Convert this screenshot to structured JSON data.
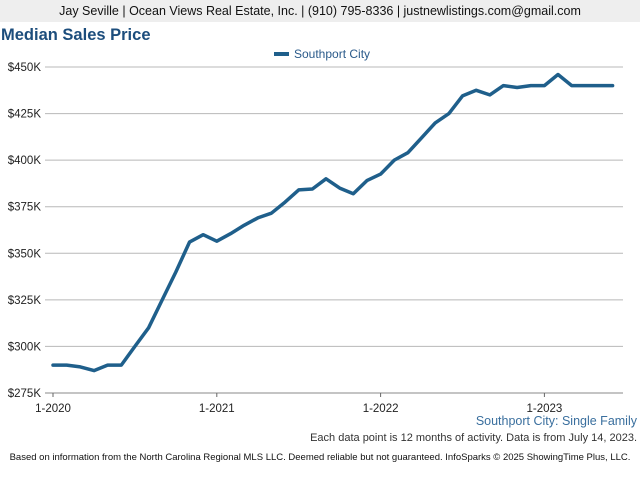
{
  "header": {
    "contact_line": "Jay Seville | Ocean Views Real Estate, Inc. | (910) 795-8336 | justnewlistings.com@gmail.com"
  },
  "chart_data": {
    "type": "line",
    "title": "Median Sales Price",
    "xlabel": "",
    "ylabel": "",
    "x_ticks": [
      "1-2020",
      "1-2021",
      "1-2022",
      "1-2023"
    ],
    "y_ticks": [
      "$275K",
      "$300K",
      "$325K",
      "$350K",
      "$375K",
      "$400K",
      "$425K",
      "$450K"
    ],
    "ylim": [
      275000,
      450000
    ],
    "grid": true,
    "legend_position": "top-center",
    "x": [
      "1-2020",
      "2-2020",
      "3-2020",
      "4-2020",
      "5-2020",
      "6-2020",
      "7-2020",
      "8-2020",
      "9-2020",
      "10-2020",
      "11-2020",
      "12-2020",
      "1-2021",
      "2-2021",
      "3-2021",
      "4-2021",
      "5-2021",
      "6-2021",
      "7-2021",
      "8-2021",
      "9-2021",
      "10-2021",
      "11-2021",
      "12-2021",
      "1-2022",
      "2-2022",
      "3-2022",
      "4-2022",
      "5-2022",
      "6-2022",
      "7-2022",
      "8-2022",
      "9-2022",
      "10-2022",
      "11-2022",
      "12-2022",
      "1-2023",
      "2-2023",
      "3-2023",
      "4-2023",
      "5-2023",
      "6-2023"
    ],
    "series": [
      {
        "name": "Southport City",
        "color": "#1f5f8b",
        "values": [
          290000,
          290000,
          289000,
          287000,
          290000,
          290000,
          300000,
          310000,
          325000,
          340000,
          356000,
          360000,
          356500,
          360500,
          365000,
          369000,
          371500,
          377500,
          384000,
          384500,
          390000,
          385000,
          382000,
          389000,
          392500,
          400000,
          404000,
          412000,
          420000,
          425000,
          434500,
          437500,
          435000,
          440000,
          439000,
          440000,
          440000,
          446000,
          440000,
          440000,
          440000,
          440000
        ]
      }
    ]
  },
  "source_label": "Southport City: Single Family",
  "note": "Each data point is 12 months of activity. Data is from July 14, 2023.",
  "footer": "Based on information from the North Carolina Regional MLS LLC. Deemed reliable but not guaranteed. InfoSparks © 2025 ShowingTime Plus, LLC."
}
